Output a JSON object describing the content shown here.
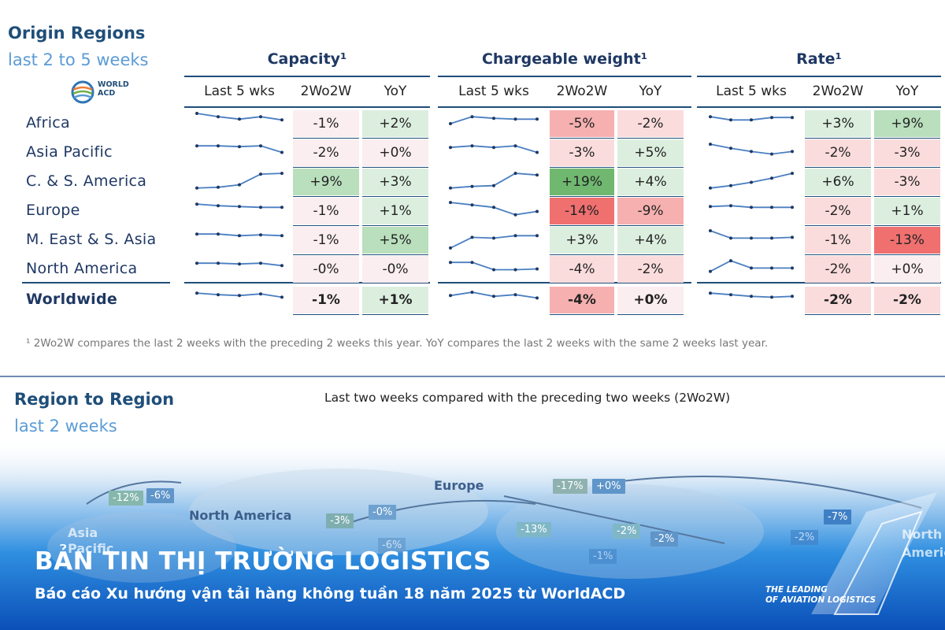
{
  "header": {
    "title": "Origin Regions",
    "subtitle": "last 2 to 5 weeks"
  },
  "logo": {
    "line1": "WORLD",
    "line2": "ACD"
  },
  "groups": [
    {
      "title": "Capacity¹",
      "cols": [
        "Last 5 wks",
        "2Wo2W",
        "YoY"
      ]
    },
    {
      "title": "Chargeable weight¹",
      "cols": [
        "Last 5 wks",
        "2Wo2W",
        "YoY"
      ]
    },
    {
      "title": "Rate¹",
      "cols": [
        "Last 5 wks",
        "2Wo2W",
        "YoY"
      ]
    }
  ],
  "colors": {
    "dark_blue": "#1f4e79",
    "spark": "#4a7fc1",
    "pos_strong": "#70b870",
    "pos_mid": "#b9dfbd",
    "pos_light": "#dcefdf",
    "neg_strong": "#f07070",
    "neg_mid": "#f6b0b0",
    "neg_light": "#fbdcdc",
    "neutral": "#fbeef0"
  },
  "chart_data": {
    "type": "table",
    "rows": [
      {
        "region": "Africa",
        "capacity": {
          "trend": [
            5,
            4.2,
            3.6,
            4.2,
            3.4
          ],
          "two_wo2w": "-1%",
          "yoy": "+2%"
        },
        "chargeable_weight": {
          "trend": [
            2.5,
            4.2,
            3.8,
            3.6,
            3.6
          ],
          "two_wo2w": "-5%",
          "yoy": "-2%"
        },
        "rate": {
          "trend": [
            4.2,
            3.4,
            3.4,
            4,
            4
          ],
          "two_wo2w": "+3%",
          "yoy": "+9%"
        }
      },
      {
        "region": "Asia Pacific",
        "capacity": {
          "trend": [
            4.2,
            4.2,
            4,
            4.2,
            2.6
          ],
          "two_wo2w": "-2%",
          "yoy": "+0%"
        },
        "chargeable_weight": {
          "trend": [
            3.8,
            4.2,
            3.8,
            4.2,
            2.6
          ],
          "two_wo2w": "-3%",
          "yoy": "+5%"
        },
        "rate": {
          "trend": [
            4.6,
            3.6,
            2.8,
            2.2,
            2.8
          ],
          "two_wo2w": "-2%",
          "yoy": "-3%"
        }
      },
      {
        "region": "C. & S. America",
        "capacity": {
          "trend": [
            1,
            1.2,
            1.8,
            4.4,
            4.6
          ],
          "two_wo2w": "+9%",
          "yoy": "+3%"
        },
        "chargeable_weight": {
          "trend": [
            1,
            1.4,
            1.6,
            4.6,
            4.2
          ],
          "two_wo2w": "+19%",
          "yoy": "+4%"
        },
        "rate": {
          "trend": [
            1,
            1.6,
            2.4,
            3.4,
            4.6
          ],
          "two_wo2w": "+6%",
          "yoy": "-3%"
        }
      },
      {
        "region": "Europe",
        "capacity": {
          "trend": [
            4.2,
            3.8,
            3.6,
            3.4,
            3.4
          ],
          "two_wo2w": "-1%",
          "yoy": "+1%"
        },
        "chargeable_weight": {
          "trend": [
            4.6,
            4,
            3.4,
            1.6,
            2.4
          ],
          "two_wo2w": "-14%",
          "yoy": "-9%"
        },
        "rate": {
          "trend": [
            3.6,
            3.8,
            3.4,
            3.4,
            3.4
          ],
          "two_wo2w": "-2%",
          "yoy": "+1%"
        }
      },
      {
        "region": "M. East & S. Asia",
        "capacity": {
          "trend": [
            4,
            4,
            3.6,
            3.8,
            3.6
          ],
          "two_wo2w": "-1%",
          "yoy": "+5%"
        },
        "chargeable_weight": {
          "trend": [
            0.6,
            3.2,
            3,
            3.6,
            3.6
          ],
          "two_wo2w": "+3%",
          "yoy": "+4%"
        },
        "rate": {
          "trend": [
            4.8,
            3,
            3,
            3,
            3.2
          ],
          "two_wo2w": "-1%",
          "yoy": "-13%"
        }
      },
      {
        "region": "North America",
        "capacity": {
          "trend": [
            4,
            4,
            3.8,
            4,
            3.4
          ],
          "two_wo2w": "-0%",
          "yoy": "-0%"
        },
        "chargeable_weight": {
          "trend": [
            4.2,
            4.2,
            2.4,
            2.4,
            2.6
          ],
          "two_wo2w": "-4%",
          "yoy": "-2%"
        },
        "rate": {
          "trend": [
            2,
            4.6,
            2.8,
            2.8,
            2.8
          ],
          "two_wo2w": "-2%",
          "yoy": "+0%"
        }
      },
      {
        "region": "Worldwide",
        "capacity": {
          "trend": [
            4.2,
            3.8,
            3.6,
            4,
            3.2
          ],
          "two_wo2w": "-1%",
          "yoy": "+1%"
        },
        "chargeable_weight": {
          "trend": [
            3.6,
            4.4,
            3.4,
            3.8,
            3
          ],
          "two_wo2w": "-4%",
          "yoy": "+0%"
        },
        "rate": {
          "trend": [
            4.2,
            3.8,
            3.4,
            3.2,
            3.4
          ],
          "two_wo2w": "-2%",
          "yoy": "-2%"
        }
      }
    ],
    "cell_shades": {
      "capacity": [
        [
          "neutral",
          "pos_light"
        ],
        [
          "neutral",
          "neutral"
        ],
        [
          "pos_mid",
          "pos_light"
        ],
        [
          "neutral",
          "pos_light"
        ],
        [
          "neutral",
          "pos_mid"
        ],
        [
          "neutral",
          "neutral"
        ],
        [
          "neutral",
          "pos_light"
        ]
      ],
      "chargeable_weight": [
        [
          "neg_mid",
          "neg_light"
        ],
        [
          "neg_light",
          "pos_light"
        ],
        [
          "pos_strong",
          "pos_light"
        ],
        [
          "neg_strong",
          "neg_mid"
        ],
        [
          "pos_light",
          "pos_light"
        ],
        [
          "neg_light",
          "neg_light"
        ],
        [
          "neg_mid",
          "neutral"
        ]
      ],
      "rate": [
        [
          "pos_light",
          "pos_mid"
        ],
        [
          "neg_light",
          "neg_light"
        ],
        [
          "pos_light",
          "neg_light"
        ],
        [
          "neg_light",
          "pos_light"
        ],
        [
          "neg_light",
          "neg_strong"
        ],
        [
          "neg_light",
          "neutral"
        ],
        [
          "neg_light",
          "neg_light"
        ]
      ]
    }
  },
  "footnote": "¹ 2Wo2W compares the last 2 weeks with the preceding 2 weeks this year. YoY compares the last 2 weeks with the same 2 weeks last year.",
  "region_to_region": {
    "title": "Region to Region",
    "subtitle": "last 2 weeks",
    "description": "Last two weeks compared with the preceding two weeks (2Wo2W)",
    "map_labels": [
      "Europe",
      "North America",
      "Asia",
      "Pacific",
      "North",
      "Americ"
    ],
    "map_values": [
      "-12%",
      "-6%",
      "-3%",
      "-0%",
      "-17%",
      "+0%",
      "-13%",
      "-2%",
      "-2%",
      "-7%",
      "-6%",
      "-2%",
      "-1%"
    ]
  },
  "banner": {
    "title": "BẢN TIN THỊ TRƯỜNG LOGISTICS",
    "subtitle": "Báo cáo Xu hướng vận tải hàng không tuần 18 năm 2025 từ WorldACD",
    "tagline1": "THE LEADING",
    "tagline2": "OF AVIATION LOGISTICS"
  }
}
